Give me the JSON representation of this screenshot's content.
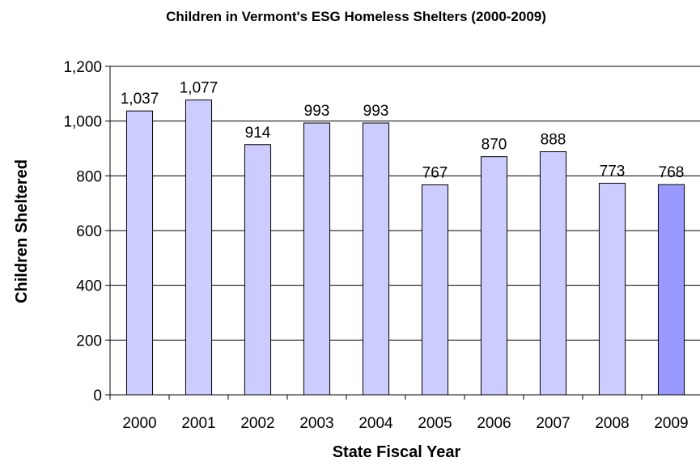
{
  "chart_data": {
    "type": "bar",
    "title": "Children in Vermont's ESG Homeless Shelters (2000-2009)",
    "xlabel": "State Fiscal Year",
    "ylabel": "Children Sheltered",
    "categories": [
      "2000",
      "2001",
      "2002",
      "2003",
      "2004",
      "2005",
      "2006",
      "2007",
      "2008",
      "2009"
    ],
    "values": [
      1037,
      1077,
      914,
      993,
      993,
      767,
      870,
      888,
      773,
      768
    ],
    "data_labels": [
      "1,037",
      "1,077",
      "914",
      "993",
      "993",
      "767",
      "870",
      "888",
      "773",
      "768"
    ],
    "ylim": [
      0,
      1200
    ],
    "yticks": [
      0,
      200,
      400,
      600,
      800,
      1000,
      1200
    ],
    "ytick_labels": [
      "0",
      "200",
      "400",
      "600",
      "800",
      "1,000",
      "1,200"
    ],
    "grid": true,
    "colors": {
      "bar": "#ccccff",
      "highlight_bar": "#9999ff",
      "bar_edge": "#000000",
      "grid": "#000000"
    },
    "highlight_index": 9
  }
}
